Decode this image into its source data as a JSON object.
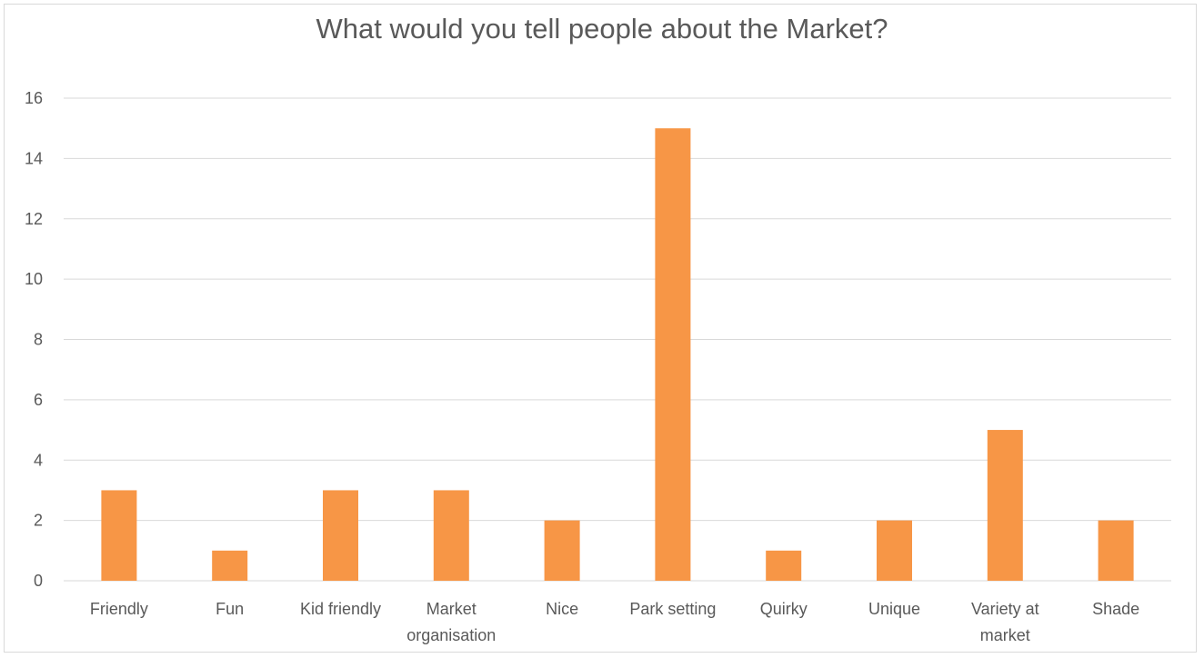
{
  "chart_data": {
    "type": "bar",
    "title": "What would you tell people about the Market?",
    "xlabel": "",
    "ylabel": "",
    "categories": [
      "Friendly",
      "Fun",
      "Kid friendly",
      "Market organisation",
      "Nice",
      "Park setting",
      "Quirky",
      "Unique",
      "Variety at market",
      "Shade"
    ],
    "category_lines": [
      [
        "Friendly"
      ],
      [
        "Fun"
      ],
      [
        "Kid friendly"
      ],
      [
        "Market",
        "organisation"
      ],
      [
        "Nice"
      ],
      [
        "Park setting"
      ],
      [
        "Quirky"
      ],
      [
        "Unique"
      ],
      [
        "Variety at",
        "market"
      ],
      [
        "Shade"
      ]
    ],
    "values": [
      3,
      1,
      3,
      3,
      2,
      15,
      1,
      2,
      5,
      2
    ],
    "ylim": [
      0,
      16
    ],
    "yticks": [
      0,
      2,
      4,
      6,
      8,
      10,
      12,
      14,
      16
    ],
    "grid": true,
    "legend": "none",
    "bar_color": "#f79646",
    "grid_color": "#d9d9d9",
    "text_color": "#595959"
  }
}
